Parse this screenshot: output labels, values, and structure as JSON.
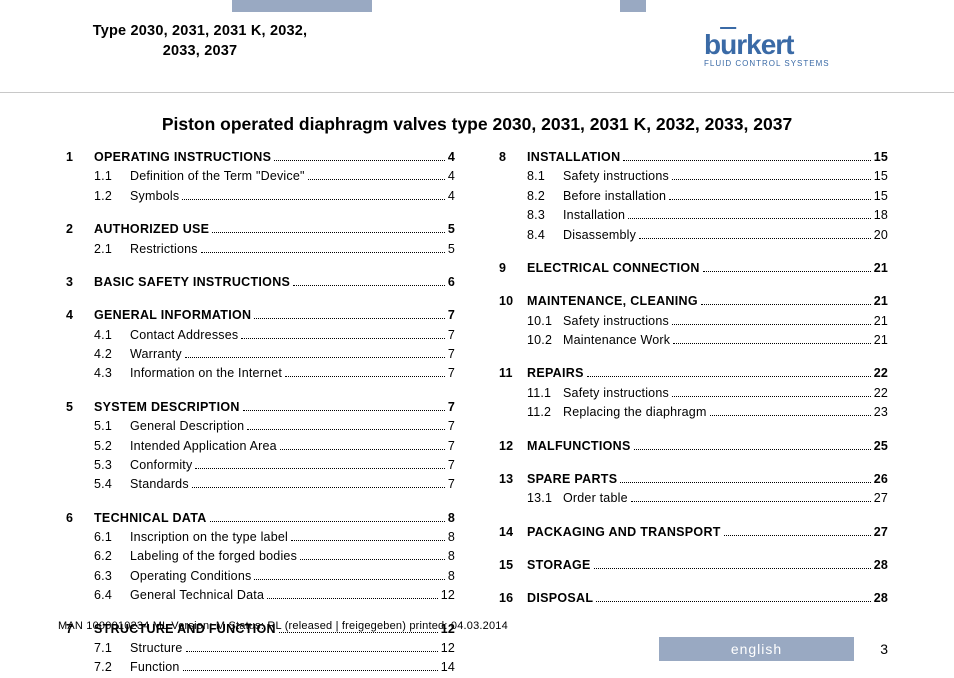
{
  "header": {
    "type_line1": "Type 2030, 2031, 2031 K, 2032,",
    "type_line2": "2033, 2037",
    "logo_brand": "burkert",
    "logo_tag": "FLUID CONTROL SYSTEMS"
  },
  "title": "Piston operated diaphragm valves type 2030, 2031, 2031 K, 2032, 2033, 2037",
  "toc_left": [
    {
      "n": "1",
      "t": "Operating instructions",
      "p": "4",
      "subs": [
        {
          "n": "1.1",
          "t": "Definition of the Term \"Device\"",
          "p": "4"
        },
        {
          "n": "1.2",
          "t": "Symbols",
          "p": "4"
        }
      ]
    },
    {
      "n": "2",
      "t": "Authorized use",
      "p": "5",
      "subs": [
        {
          "n": "2.1",
          "t": "Restrictions",
          "p": "5"
        }
      ]
    },
    {
      "n": "3",
      "t": "Basic safety instructions",
      "p": "6",
      "subs": []
    },
    {
      "n": "4",
      "t": "General information",
      "p": "7",
      "subs": [
        {
          "n": "4.1",
          "t": "Contact Addresses",
          "p": "7"
        },
        {
          "n": "4.2",
          "t": "Warranty",
          "p": "7"
        },
        {
          "n": "4.3",
          "t": "Information on the Internet",
          "p": "7"
        }
      ]
    },
    {
      "n": "5",
      "t": "System description",
      "p": "7",
      "subs": [
        {
          "n": "5.1",
          "t": "General Description",
          "p": "7"
        },
        {
          "n": "5.2",
          "t": "Intended Application Area",
          "p": "7"
        },
        {
          "n": "5.3",
          "t": "Conformity",
          "p": "7"
        },
        {
          "n": "5.4",
          "t": "Standards",
          "p": "7"
        }
      ]
    },
    {
      "n": "6",
      "t": "Technical Data",
      "p": "8",
      "subs": [
        {
          "n": "6.1",
          "t": "Inscription on the type label",
          "p": "8"
        },
        {
          "n": "6.2",
          "t": "Labeling of the forged bodies",
          "p": "8"
        },
        {
          "n": "6.3",
          "t": "Operating Conditions",
          "p": "8"
        },
        {
          "n": "6.4",
          "t": "General Technical Data",
          "p": "12"
        }
      ]
    },
    {
      "n": "7",
      "t": "Structure and function",
      "p": "12",
      "subs": [
        {
          "n": "7.1",
          "t": "Structure",
          "p": "12"
        },
        {
          "n": "7.2",
          "t": "Function",
          "p": "14"
        }
      ]
    }
  ],
  "toc_right": [
    {
      "n": "8",
      "t": "Installation",
      "p": "15",
      "subs": [
        {
          "n": "8.1",
          "t": "Safety instructions",
          "p": "15"
        },
        {
          "n": "8.2",
          "t": "Before installation",
          "p": "15"
        },
        {
          "n": "8.3",
          "t": "Installation",
          "p": "18"
        },
        {
          "n": "8.4",
          "t": "Disassembly",
          "p": "20"
        }
      ]
    },
    {
      "n": "9",
      "t": "Electrical connection",
      "p": "21",
      "subs": []
    },
    {
      "n": "10",
      "t": "Maintenance, Cleaning",
      "p": "21",
      "subs": [
        {
          "n": "10.1",
          "t": "Safety instructions",
          "p": "21"
        },
        {
          "n": "10.2",
          "t": "Maintenance Work",
          "p": "21"
        }
      ]
    },
    {
      "n": "11",
      "t": "Repairs",
      "p": "22",
      "subs": [
        {
          "n": "11.1",
          "t": "Safety instructions",
          "p": "22"
        },
        {
          "n": "11.2",
          "t": "Replacing the diaphragm",
          "p": "23"
        }
      ]
    },
    {
      "n": "12",
      "t": "Malfunctions",
      "p": "25",
      "subs": []
    },
    {
      "n": "13",
      "t": "Spare parts",
      "p": "26",
      "subs": [
        {
          "n": "13.1",
          "t": "Order table",
          "p": "27"
        }
      ]
    },
    {
      "n": "14",
      "t": "Packaging and Transport",
      "p": "27",
      "subs": []
    },
    {
      "n": "15",
      "t": "Storage",
      "p": "28",
      "subs": []
    },
    {
      "n": "16",
      "t": "Disposal",
      "p": "28",
      "subs": []
    }
  ],
  "footer": {
    "print": "MAN 1000010234 ML Version: M Status: RL (released | freigegeben) printed: 04.03.2014",
    "lang": "english",
    "page": "3"
  },
  "colors": {
    "accent": "#99a9c2",
    "brand": "#3a6aa6"
  }
}
